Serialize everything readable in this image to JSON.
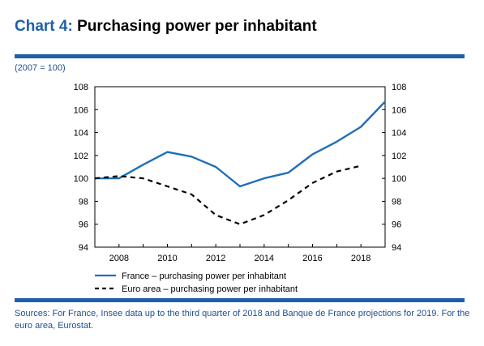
{
  "title": {
    "number": "Chart 4:",
    "text": "Purchasing power per inhabitant"
  },
  "unit_note": "(2007 = 100)",
  "source_note": "Sources: For France, Insee data up to the third quarter of 2018 and Banque de France projections for 2019. For the euro area, Eurostat.",
  "colors": {
    "accent": "#1f5fa8",
    "france": "#1f6fb8",
    "euro": "#000000"
  },
  "chart_data": {
    "type": "line",
    "x_ticks": [
      "2008",
      "2010",
      "2012",
      "2014",
      "2016",
      "2018"
    ],
    "y_ticks": [
      "94",
      "96",
      "98",
      "100",
      "102",
      "104",
      "106",
      "108"
    ],
    "xlim": [
      2007,
      2019
    ],
    "ylim": [
      94,
      108
    ],
    "grid": false,
    "legend_position": "bottom",
    "series": [
      {
        "name": "France – purchasing power per inhabitant",
        "style": "solid",
        "color": "#1f6fb8",
        "x": [
          2007,
          2008,
          2009,
          2010,
          2011,
          2012,
          2013,
          2014,
          2015,
          2016,
          2017,
          2018,
          2019
        ],
        "y": [
          100.0,
          100.0,
          101.2,
          102.3,
          101.9,
          101.0,
          99.3,
          100.0,
          100.5,
          102.1,
          103.2,
          104.5,
          106.7
        ]
      },
      {
        "name": "Euro area – purchasing power per inhabitant",
        "style": "dashed",
        "color": "#000000",
        "x": [
          2007,
          2008,
          2009,
          2010,
          2011,
          2012,
          2013,
          2014,
          2015,
          2016,
          2017,
          2018
        ],
        "y": [
          100.0,
          100.2,
          100.0,
          99.3,
          98.6,
          96.8,
          96.0,
          96.8,
          98.1,
          99.6,
          100.6,
          101.1
        ]
      }
    ]
  }
}
